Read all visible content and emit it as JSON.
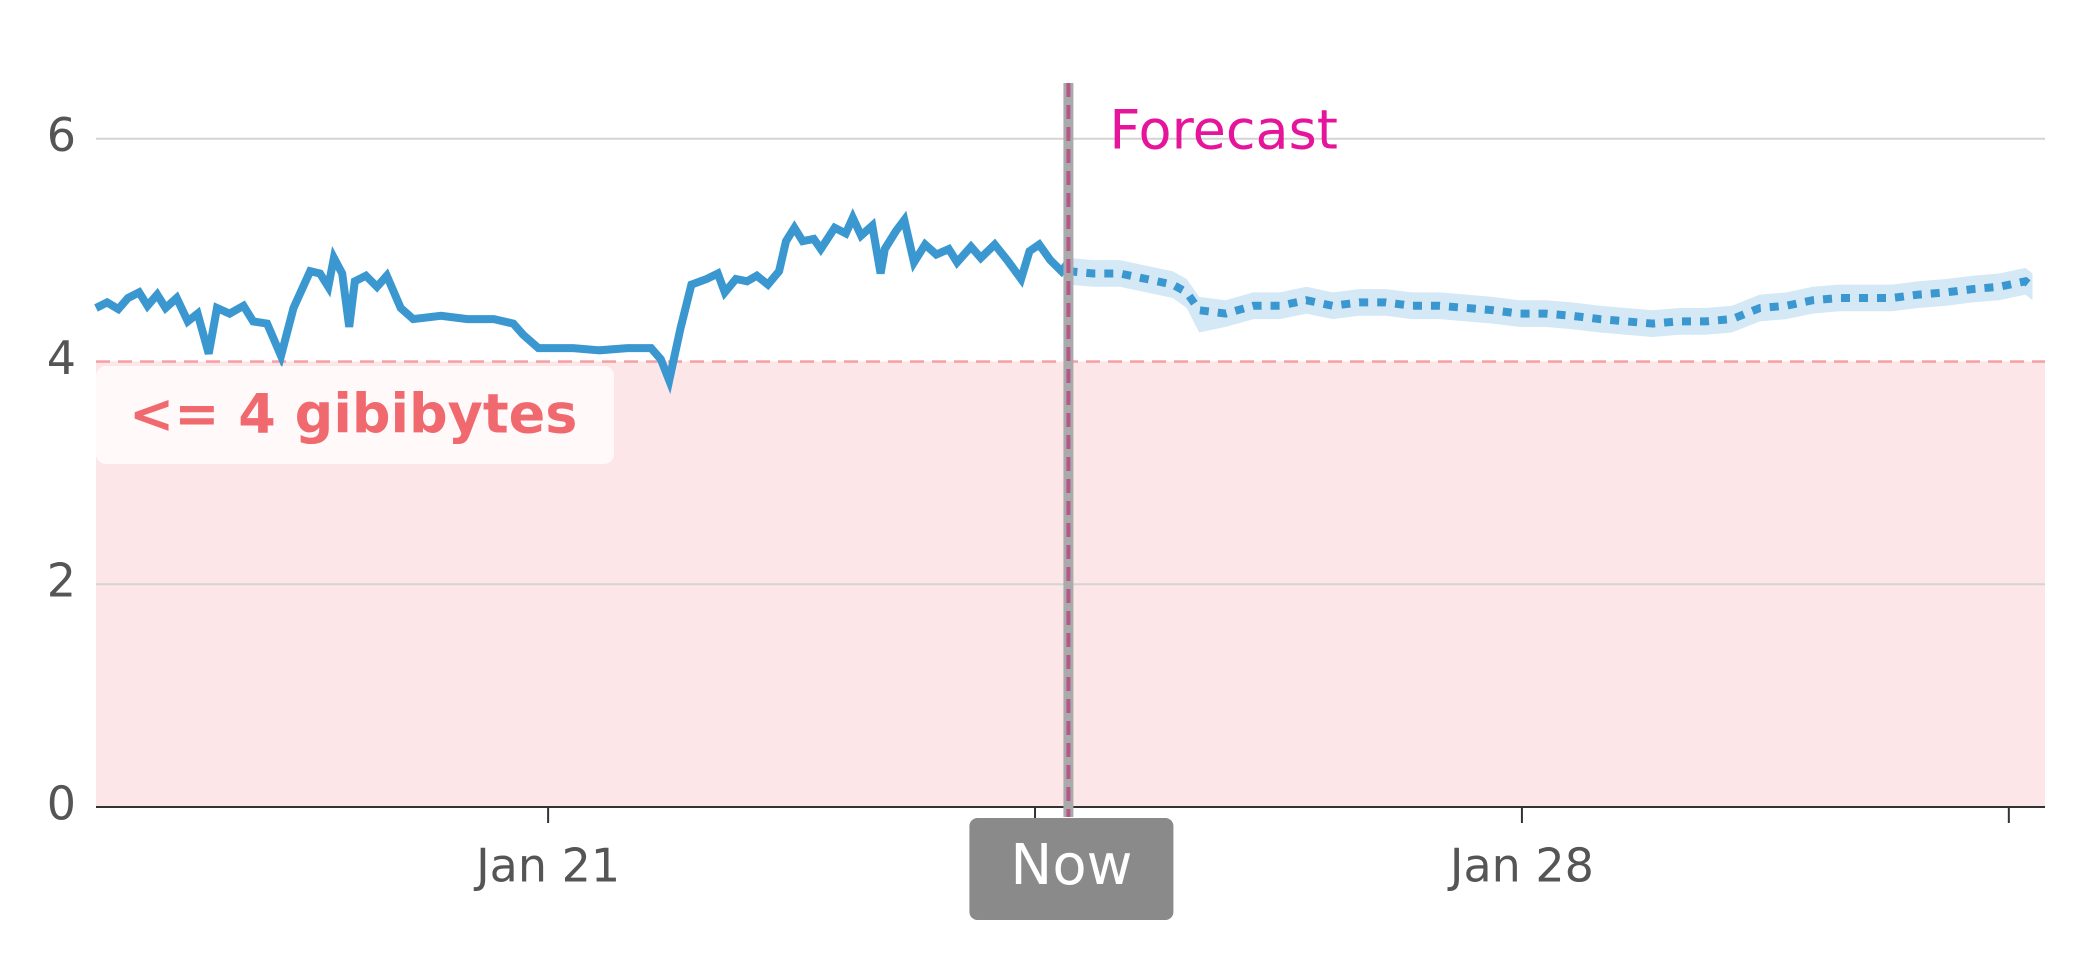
{
  "chart_data": {
    "type": "line",
    "xlim": [
      17.75,
      31.76
    ],
    "ylim": [
      0,
      6.5
    ],
    "yticks": [
      0,
      2,
      4,
      6
    ],
    "xticks": [
      {
        "value": 21,
        "label": "Jan 21"
      },
      {
        "value": 24.5,
        "label": null
      },
      {
        "value": 28,
        "label": "Jan 28"
      },
      {
        "value": 31.5,
        "label": null
      }
    ],
    "grid": true,
    "threshold": {
      "value": 4,
      "label": "<= 4 gibibytes",
      "color": "#f0696e",
      "fill": "#fde6e8"
    },
    "now": {
      "value": 24.74,
      "label": "Now"
    },
    "forecast_label": "Forecast",
    "series": [
      {
        "color": "#3a97cf",
        "style": "solid",
        "x": [
          17.75,
          17.83,
          17.91,
          17.98,
          18.06,
          18.12,
          18.19,
          18.25,
          18.33,
          18.41,
          18.48,
          18.56,
          18.62,
          18.71,
          18.81,
          18.88,
          18.98,
          19.08,
          19.17,
          19.29,
          19.36,
          19.42,
          19.46,
          19.52,
          19.57,
          19.61,
          19.69,
          19.77,
          19.84,
          19.94,
          20.03,
          20.23,
          20.42,
          20.61,
          20.75,
          20.82,
          20.93,
          21.18,
          21.37,
          21.57,
          21.74,
          21.81,
          21.87,
          21.95,
          22.03,
          22.14,
          22.22,
          22.27,
          22.35,
          22.43,
          22.5,
          22.58,
          22.66,
          22.71,
          22.77,
          22.83,
          22.91,
          22.96,
          23.06,
          23.14,
          23.19,
          23.25,
          23.33,
          23.39,
          23.42,
          23.5,
          23.56,
          23.63,
          23.71,
          23.79,
          23.88,
          23.94,
          24.04,
          24.11,
          24.21,
          24.3,
          24.4,
          24.46,
          24.53,
          24.61,
          24.69,
          24.74
        ],
        "values": [
          4.48,
          4.53,
          4.47,
          4.57,
          4.62,
          4.5,
          4.6,
          4.48,
          4.57,
          4.36,
          4.43,
          4.07,
          4.48,
          4.43,
          4.5,
          4.36,
          4.34,
          4.05,
          4.48,
          4.81,
          4.79,
          4.67,
          4.93,
          4.79,
          4.31,
          4.72,
          4.77,
          4.67,
          4.77,
          4.48,
          4.38,
          4.41,
          4.38,
          4.38,
          4.34,
          4.24,
          4.12,
          4.12,
          4.1,
          4.12,
          4.12,
          4.02,
          3.83,
          4.29,
          4.69,
          4.74,
          4.79,
          4.62,
          4.74,
          4.72,
          4.77,
          4.69,
          4.81,
          5.08,
          5.2,
          5.08,
          5.1,
          5.01,
          5.2,
          5.15,
          5.29,
          5.13,
          5.22,
          4.79,
          5.01,
          5.17,
          5.27,
          4.89,
          5.05,
          4.96,
          5.01,
          4.89,
          5.03,
          4.93,
          5.05,
          4.91,
          4.74,
          4.99,
          5.05,
          4.91,
          4.81,
          4.89
        ]
      },
      {
        "color": "#3a97cf",
        "style": "dotted",
        "band_color": "#d4e8f5",
        "x": [
          24.74,
          24.92,
          25.11,
          25.3,
          25.49,
          25.59,
          25.68,
          25.87,
          26.07,
          26.26,
          26.45,
          26.64,
          26.83,
          27.02,
          27.21,
          27.41,
          27.6,
          27.79,
          27.98,
          28.17,
          28.36,
          28.56,
          28.75,
          28.94,
          29.13,
          29.32,
          29.51,
          29.71,
          29.9,
          30.09,
          30.28,
          30.47,
          30.66,
          30.85,
          31.05,
          31.24,
          31.43,
          31.62,
          31.67
        ],
        "values": [
          4.81,
          4.79,
          4.79,
          4.74,
          4.69,
          4.62,
          4.46,
          4.43,
          4.5,
          4.5,
          4.55,
          4.5,
          4.53,
          4.53,
          4.5,
          4.5,
          4.48,
          4.46,
          4.43,
          4.43,
          4.41,
          4.38,
          4.36,
          4.34,
          4.36,
          4.36,
          4.38,
          4.48,
          4.5,
          4.55,
          4.57,
          4.57,
          4.57,
          4.6,
          4.62,
          4.65,
          4.67,
          4.72,
          4.67
        ],
        "lower": [
          4.69,
          4.67,
          4.67,
          4.62,
          4.57,
          4.48,
          4.26,
          4.31,
          4.38,
          4.38,
          4.43,
          4.38,
          4.41,
          4.41,
          4.38,
          4.38,
          4.36,
          4.34,
          4.31,
          4.31,
          4.29,
          4.26,
          4.24,
          4.22,
          4.24,
          4.24,
          4.26,
          4.36,
          4.38,
          4.43,
          4.45,
          4.45,
          4.45,
          4.48,
          4.5,
          4.53,
          4.55,
          4.6,
          4.55
        ],
        "upper": [
          4.93,
          4.91,
          4.91,
          4.86,
          4.81,
          4.74,
          4.58,
          4.55,
          4.62,
          4.62,
          4.67,
          4.62,
          4.65,
          4.65,
          4.62,
          4.62,
          4.6,
          4.58,
          4.55,
          4.55,
          4.53,
          4.5,
          4.48,
          4.46,
          4.48,
          4.48,
          4.5,
          4.6,
          4.62,
          4.67,
          4.69,
          4.69,
          4.69,
          4.72,
          4.74,
          4.77,
          4.79,
          4.84,
          4.79
        ]
      }
    ]
  }
}
